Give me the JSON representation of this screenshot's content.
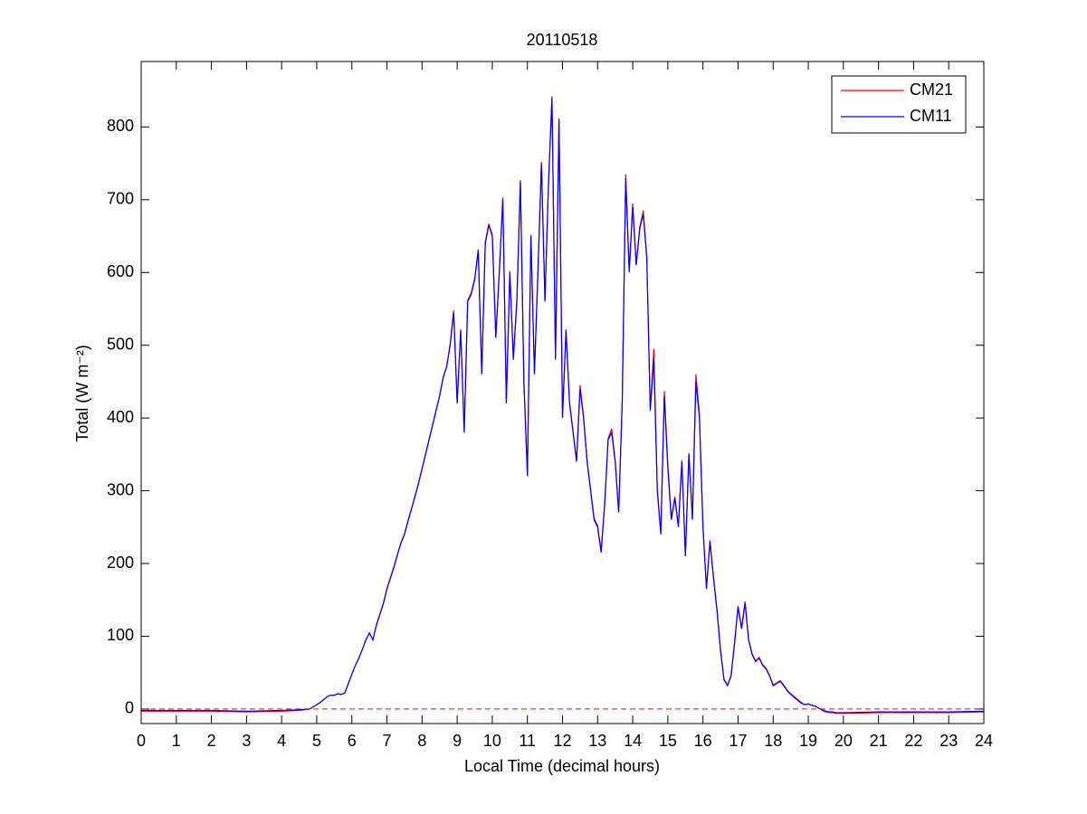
{
  "chart_data": {
    "type": "line",
    "title": "20110518",
    "xlabel": "Local Time (decimal hours)",
    "ylabel": "Total (W m⁻²)",
    "x": [
      0,
      1,
      2,
      3,
      4,
      4.5,
      4.8,
      4.9,
      5,
      5.1,
      5.2,
      5.3,
      5.4,
      5.5,
      5.6,
      5.7,
      5.8,
      5.9,
      6,
      6.1,
      6.2,
      6.3,
      6.4,
      6.5,
      6.6,
      6.7,
      6.8,
      6.9,
      7,
      7.1,
      7.2,
      7.3,
      7.4,
      7.5,
      7.6,
      7.7,
      7.8,
      7.9,
      8,
      8.1,
      8.2,
      8.3,
      8.4,
      8.5,
      8.6,
      8.7,
      8.8,
      8.9,
      9,
      9.1,
      9.2,
      9.3,
      9.4,
      9.5,
      9.6,
      9.7,
      9.8,
      9.9,
      10,
      10.1,
      10.2,
      10.3,
      10.4,
      10.5,
      10.6,
      10.7,
      10.8,
      10.9,
      11,
      11.1,
      11.2,
      11.3,
      11.4,
      11.5,
      11.6,
      11.7,
      11.8,
      11.9,
      12,
      12.1,
      12.2,
      12.3,
      12.4,
      12.5,
      12.6,
      12.7,
      12.8,
      12.9,
      13,
      13.1,
      13.2,
      13.3,
      13.4,
      13.5,
      13.6,
      13.7,
      13.8,
      13.9,
      14,
      14.1,
      14.2,
      14.3,
      14.4,
      14.5,
      14.6,
      14.7,
      14.8,
      14.9,
      15,
      15.1,
      15.2,
      15.3,
      15.4,
      15.5,
      15.6,
      15.7,
      15.8,
      15.9,
      16,
      16.1,
      16.2,
      16.3,
      16.4,
      16.5,
      16.6,
      16.7,
      16.8,
      16.9,
      17,
      17.1,
      17.2,
      17.3,
      17.4,
      17.5,
      17.6,
      17.7,
      17.8,
      17.9,
      18,
      18.1,
      18.2,
      18.3,
      18.4,
      18.5,
      18.6,
      18.7,
      18.8,
      18.9,
      19,
      19.1,
      19.2,
      19.3,
      19.4,
      19.5,
      19.6,
      19.7,
      19.8,
      20,
      21,
      22,
      23,
      24
    ],
    "series": [
      {
        "name": "CM21",
        "color": "#ff0000",
        "values": [
          -3,
          -3,
          -3,
          -4,
          -3,
          -2,
          0,
          3,
          6,
          9,
          13,
          17,
          19,
          19,
          21,
          20,
          22,
          35,
          48,
          60,
          70,
          82,
          95,
          105,
          95,
          116,
          131,
          146,
          166,
          181,
          196,
          213,
          229,
          241,
          259,
          276,
          293,
          311,
          331,
          351,
          371,
          391,
          411,
          431,
          456,
          471,
          502,
          548,
          422,
          522,
          382,
          562,
          572,
          592,
          632,
          462,
          642,
          667,
          652,
          512,
          602,
          703,
          422,
          602,
          482,
          562,
          727,
          452,
          322,
          652,
          462,
          602,
          752,
          562,
          722,
          842,
          482,
          812,
          402,
          522,
          422,
          382,
          342,
          445,
          402,
          342,
          302,
          262,
          252,
          217,
          282,
          372,
          385,
          342,
          272,
          422,
          735,
          602,
          695,
          612,
          662,
          685,
          622,
          412,
          495,
          302,
          242,
          437,
          335,
          262,
          292,
          252,
          342,
          212,
          352,
          262,
          460,
          405,
          252,
          167,
          232,
          182,
          137,
          82,
          41,
          33,
          46,
          92,
          142,
          112,
          148,
          96,
          76,
          66,
          71,
          61,
          56,
          46,
          33,
          36,
          39,
          33,
          26,
          21,
          17,
          13,
          9,
          6,
          7,
          5,
          4,
          1,
          -2,
          -4,
          -5,
          -5,
          -6,
          -6,
          -5,
          -5,
          -5,
          -4
        ]
      },
      {
        "name": "CM11",
        "color": "#0000ff",
        "values": [
          -2,
          -2,
          -2,
          -3,
          -2,
          -1,
          0,
          3,
          6,
          9,
          13,
          17,
          19,
          19,
          21,
          20,
          22,
          35,
          48,
          60,
          70,
          82,
          95,
          104,
          95,
          115,
          130,
          145,
          165,
          180,
          195,
          212,
          228,
          240,
          258,
          275,
          292,
          310,
          330,
          350,
          370,
          390,
          410,
          430,
          455,
          470,
          500,
          545,
          420,
          520,
          380,
          560,
          570,
          590,
          630,
          460,
          640,
          665,
          650,
          510,
          600,
          700,
          420,
          600,
          480,
          560,
          725,
          450,
          320,
          650,
          460,
          600,
          750,
          560,
          720,
          840,
          480,
          810,
          400,
          520,
          420,
          380,
          340,
          440,
          400,
          340,
          300,
          260,
          250,
          215,
          280,
          370,
          380,
          340,
          270,
          420,
          730,
          600,
          690,
          610,
          660,
          680,
          620,
          410,
          480,
          300,
          240,
          430,
          330,
          260,
          290,
          250,
          340,
          210,
          350,
          260,
          450,
          400,
          250,
          165,
          230,
          180,
          135,
          80,
          40,
          32,
          45,
          90,
          140,
          110,
          145,
          95,
          75,
          65,
          70,
          60,
          55,
          45,
          32,
          35,
          38,
          32,
          25,
          20,
          16,
          12,
          8,
          6,
          7,
          5,
          4,
          1,
          -1,
          -3,
          -4,
          -4,
          -5,
          -5,
          -4,
          -4,
          -4,
          -3
        ]
      }
    ],
    "hline": {
      "value": 0,
      "color": "#ff0000",
      "dashed": true
    },
    "xlim": [
      0,
      24
    ],
    "xticks": [
      0,
      1,
      2,
      3,
      4,
      5,
      6,
      7,
      8,
      9,
      10,
      11,
      12,
      13,
      14,
      15,
      16,
      17,
      18,
      19,
      20,
      21,
      22,
      23,
      24
    ],
    "ylim": [
      -20,
      890
    ],
    "yticks": [
      0,
      100,
      200,
      300,
      400,
      500,
      600,
      700,
      800
    ],
    "legend": "upper right"
  }
}
